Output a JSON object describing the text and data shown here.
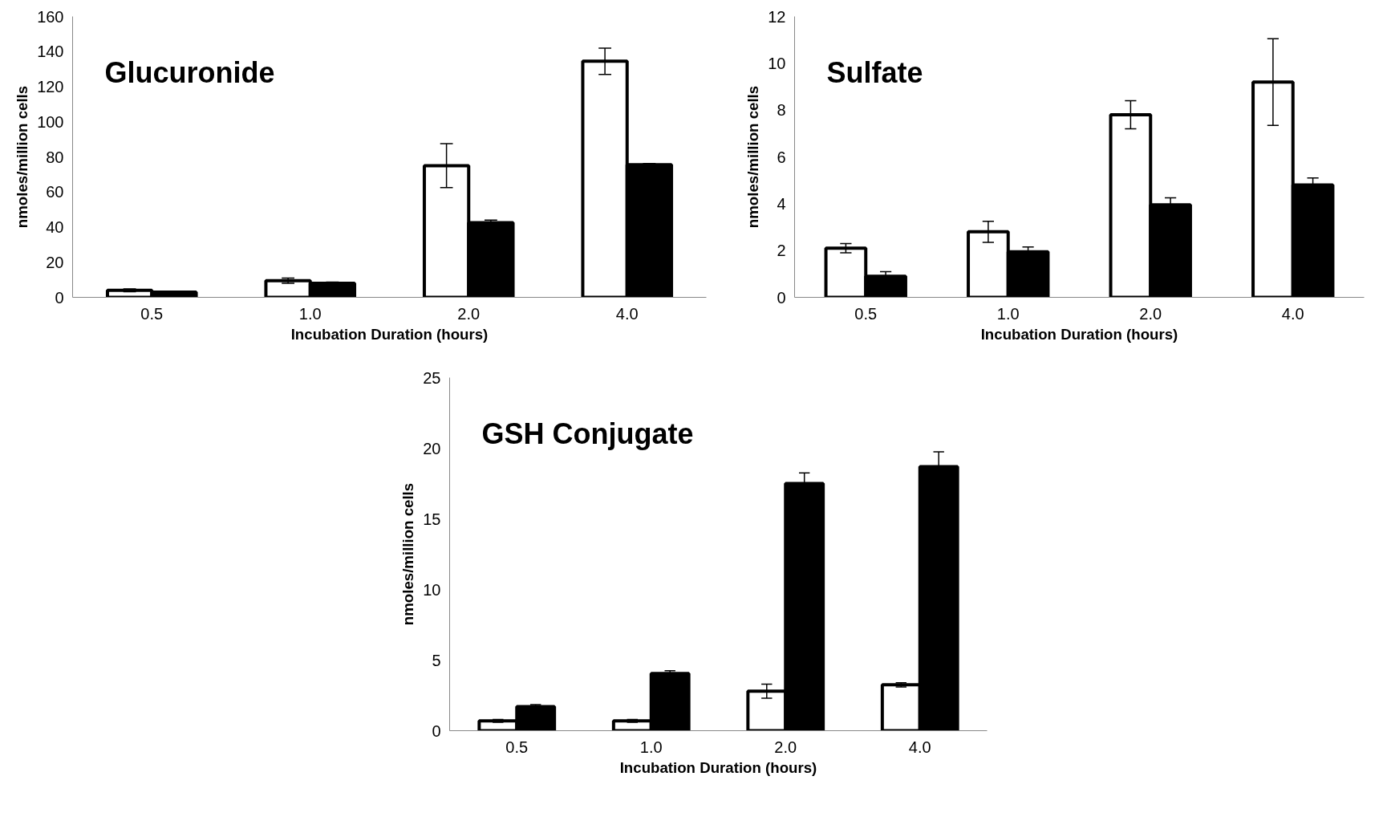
{
  "chart_data": [
    {
      "type": "bar",
      "title": "Glucuronide",
      "xlabel": "Incubation Duration (hours)",
      "ylabel": "nmoles/million cells",
      "categories": [
        "0.5",
        "1.0",
        "2.0",
        "4.0"
      ],
      "ylim": [
        0,
        160
      ],
      "yticks": [
        0,
        20,
        40,
        60,
        80,
        100,
        120,
        140,
        160
      ],
      "grid": false,
      "series": [
        {
          "color": "#ffffff",
          "values": [
            4,
            9.5,
            75,
            134.5
          ],
          "errors": [
            0.8,
            1.5,
            12.5,
            7.5
          ]
        },
        {
          "color": "#000000",
          "values": [
            3,
            8,
            42.5,
            75.5
          ],
          "errors": [
            0.5,
            0.7,
            1.5,
            0.7
          ]
        }
      ]
    },
    {
      "type": "bar",
      "title": "Sulfate",
      "xlabel": "Incubation Duration (hours)",
      "ylabel": "nmoles/million cells",
      "categories": [
        "0.5",
        "1.0",
        "2.0",
        "4.0"
      ],
      "ylim": [
        0,
        12
      ],
      "yticks": [
        0,
        2,
        4,
        6,
        8,
        10,
        12
      ],
      "grid": false,
      "series": [
        {
          "color": "#ffffff",
          "values": [
            2.1,
            2.8,
            7.8,
            9.2
          ],
          "errors": [
            0.2,
            0.45,
            0.6,
            1.85
          ]
        },
        {
          "color": "#000000",
          "values": [
            0.9,
            1.95,
            3.95,
            4.8
          ],
          "errors": [
            0.2,
            0.2,
            0.3,
            0.3
          ]
        }
      ]
    },
    {
      "type": "bar",
      "title": "GSH Conjugate",
      "xlabel": "Incubation Duration (hours)",
      "ylabel": "nmoles/million cells",
      "categories": [
        "0.5",
        "1.0",
        "2.0",
        "4.0"
      ],
      "ylim": [
        0,
        25
      ],
      "yticks": [
        0,
        5,
        10,
        15,
        20,
        25
      ],
      "grid": false,
      "series": [
        {
          "color": "#ffffff",
          "values": [
            0.7,
            0.7,
            2.8,
            3.25
          ],
          "errors": [
            0.1,
            0.1,
            0.5,
            0.15
          ]
        },
        {
          "color": "#000000",
          "values": [
            1.7,
            4.05,
            17.5,
            18.7
          ],
          "errors": [
            0.15,
            0.2,
            0.75,
            1.05
          ]
        }
      ]
    }
  ]
}
